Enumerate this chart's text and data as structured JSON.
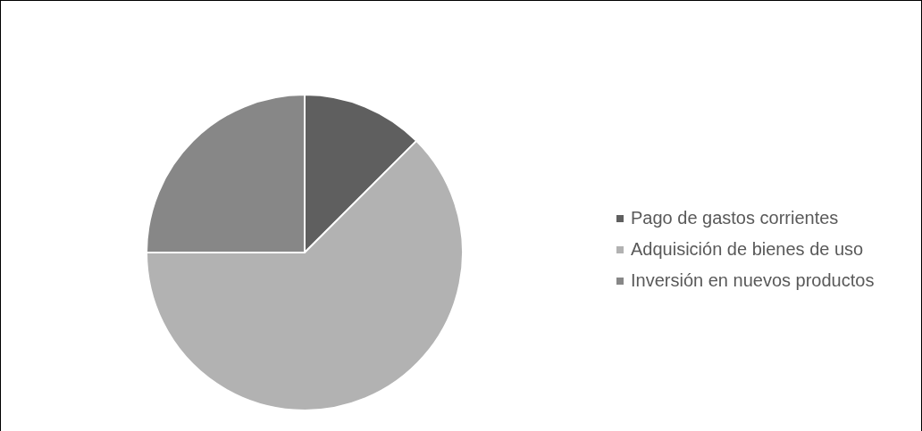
{
  "chart_data": {
    "type": "pie",
    "categories": [
      "Pago de gastos corrientes",
      "Adquisición de bienes de uso",
      "Inversión en nuevos productos"
    ],
    "values": [
      12.5,
      62.5,
      25
    ],
    "colors": [
      "#5f5f5f",
      "#b2b2b2",
      "#878787"
    ],
    "legend": "right"
  }
}
